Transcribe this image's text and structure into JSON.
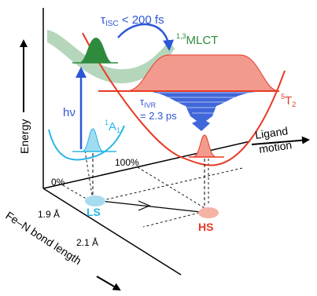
{
  "axes": {
    "energy": "Energy",
    "ligand_motion_line1": "Ligand",
    "ligand_motion_line2": "motion",
    "bond_length": "Fe–N bond length",
    "percent_0": "0%",
    "percent_100": "100%",
    "bond_1_9": "1.9 Å",
    "bond_2_1": "2.1 Å"
  },
  "states": {
    "mlct_sup": "1,3",
    "mlct": "MLCT",
    "t2_sup": "5",
    "t2": "T",
    "t2_sub": "2",
    "a1_sup": "1",
    "a1": "A",
    "a1_sub": "1",
    "ls": "LS",
    "hs": "HS"
  },
  "annotations": {
    "tau_isc": "τ",
    "tau_isc_sub": "ISC",
    "tau_isc_value": " < 200 fs",
    "tau_ivr": "τ",
    "tau_ivr_sub": "IVR",
    "tau_ivr_value": "= 2.3 ps",
    "hv": "hν"
  },
  "colors": {
    "mlct_green": "#2e8b3e",
    "mlct_band": "#a8cfae",
    "t2_red": "#e83a25",
    "t2_fill": "#f39a8e",
    "a1_cyan": "#29b6e6",
    "a1_fill": "#9fdcf2",
    "ivr_blue": "#2b56d6",
    "ls_fill": "#a6dcf0",
    "hs_fill": "#f5b3a6"
  }
}
